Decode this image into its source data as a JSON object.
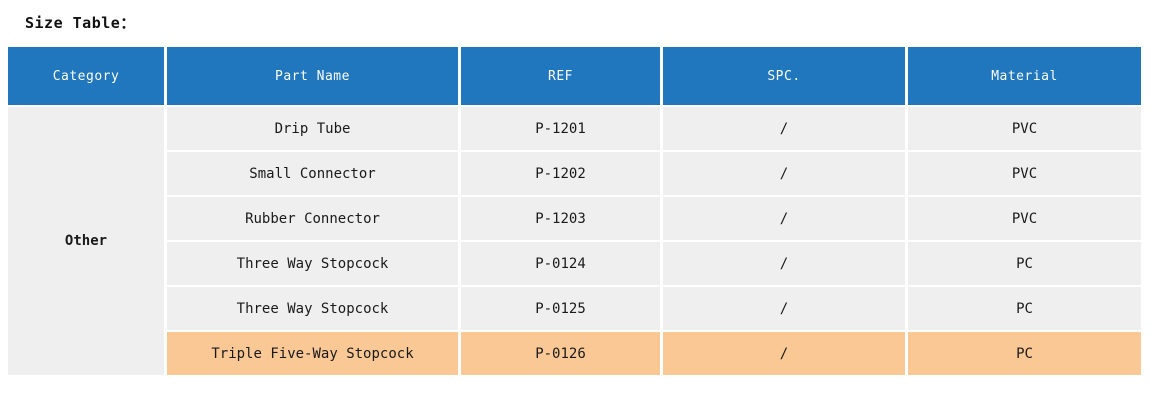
{
  "page": {
    "title": "Size Table："
  },
  "colors": {
    "header_bg": "#2077BE",
    "header_text": "#FFFFFF",
    "row_bg": "#EFEFEF",
    "highlight_row_bg": "#FAC894",
    "body_text": "#1A1A1A",
    "page_bg": "#FFFFFF"
  },
  "table": {
    "columns": [
      "Category",
      "Part Name",
      "REF",
      "SPC.",
      "Material"
    ],
    "category_label": "Other",
    "rows": [
      {
        "part_name": "Drip Tube",
        "ref": "P-1201",
        "spc": "/",
        "material": "PVC",
        "highlighted": false
      },
      {
        "part_name": "Small Connector",
        "ref": "P-1202",
        "spc": "/",
        "material": "PVC",
        "highlighted": false
      },
      {
        "part_name": "Rubber Connector",
        "ref": "P-1203",
        "spc": "/",
        "material": "PVC",
        "highlighted": false
      },
      {
        "part_name": "Three Way Stopcock",
        "ref": "P-0124",
        "spc": "/",
        "material": "PC",
        "highlighted": false
      },
      {
        "part_name": "Three Way Stopcock",
        "ref": "P-0125",
        "spc": "/",
        "material": "PC",
        "highlighted": false
      },
      {
        "part_name": "Triple Five-Way Stopcock",
        "ref": "P-0126",
        "spc": "/",
        "material": "PC",
        "highlighted": true
      }
    ]
  }
}
